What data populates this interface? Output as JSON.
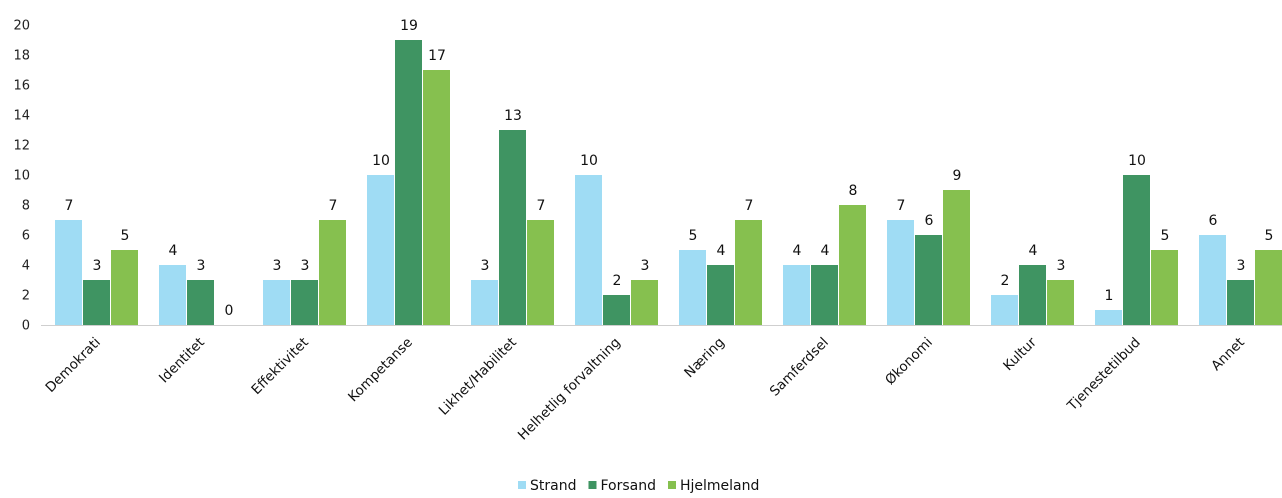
{
  "chart_data": {
    "type": "bar",
    "title": "",
    "xlabel": "",
    "ylabel": "",
    "ylim": [
      0,
      20
    ],
    "yticks": [
      0,
      2,
      4,
      6,
      8,
      10,
      12,
      14,
      16,
      18,
      20
    ],
    "grid": false,
    "legend_position": "bottom",
    "categories": [
      "Demokrati",
      "Identitet",
      "Effektivitet",
      "Kompetanse",
      "Likhet/Habilitet",
      "Helhetlig forvaltning",
      "Næring",
      "Samferdsel",
      "Økonomi",
      "Kultur",
      "Tjenestetilbud",
      "Annet"
    ],
    "series": [
      {
        "name": "Strand",
        "color": "#9fdcf4",
        "values": [
          7,
          4,
          3,
          10,
          3,
          10,
          5,
          4,
          7,
          2,
          1,
          6
        ]
      },
      {
        "name": "Forsand",
        "color": "#3f9462",
        "values": [
          3,
          3,
          3,
          19,
          13,
          2,
          4,
          4,
          6,
          4,
          10,
          3
        ]
      },
      {
        "name": "Hjelmeland",
        "color": "#86c04f",
        "values": [
          5,
          0,
          7,
          17,
          7,
          3,
          7,
          8,
          9,
          3,
          5,
          5
        ]
      }
    ]
  }
}
